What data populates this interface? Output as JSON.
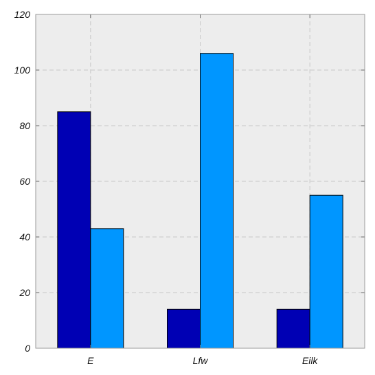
{
  "chart_data": {
    "type": "bar",
    "categories": [
      "E",
      "Lfw",
      "Eilk"
    ],
    "series": [
      {
        "values": [
          85,
          14,
          14
        ]
      },
      {
        "values": [
          43,
          106,
          55
        ]
      }
    ],
    "title": "",
    "xlabel": "",
    "ylabel": "",
    "ylim": [
      0,
      120
    ],
    "yticks": [
      "0",
      "20",
      "40",
      "60",
      "80",
      "100",
      "120"
    ],
    "grid": true,
    "legend": "none",
    "colors": {
      "series": [
        "#0000B4",
        "#0096FF"
      ],
      "plot_background": "#EDEDED",
      "grid": "#C8C8C8",
      "axis": "#666666"
    }
  }
}
